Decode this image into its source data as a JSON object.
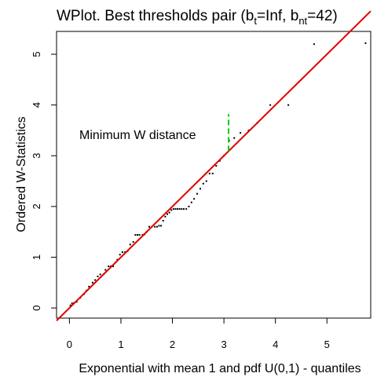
{
  "chart_data": {
    "type": "scatter",
    "title": {
      "main": "WPlot. Best thresholds pair (b",
      "sub1": "t",
      "mid": "=Inf, b",
      "sub2": "nt",
      "end": "=42)"
    },
    "xlabel": "Exponential with mean 1 and pdf U(0,1) - quantiles",
    "ylabel": "Ordered W-Statistics",
    "xlim": [
      -0.25,
      5.85
    ],
    "ylim": [
      -0.2,
      5.45
    ],
    "xticks": [
      "0",
      "1",
      "2",
      "3",
      "4",
      "5"
    ],
    "yticks": [
      "0",
      "1",
      "2",
      "3",
      "4",
      "5"
    ],
    "grid": false,
    "annotation": "Minimum W distance",
    "reference_line": {
      "intercept": 0,
      "slope": 1,
      "color": "#e00000"
    },
    "min_distance_segment": {
      "x": 3.09,
      "y_from": 3.09,
      "y_to": 3.82,
      "color": "#00cc00"
    },
    "point_color": "#000000",
    "points": {
      "x": [
        0.02,
        0.05,
        0.09,
        0.14,
        0.21,
        0.28,
        0.33,
        0.38,
        0.45,
        0.5,
        0.55,
        0.6,
        0.66,
        0.7,
        0.76,
        0.8,
        0.85,
        0.9,
        0.93,
        0.98,
        1.03,
        1.08,
        1.13,
        1.18,
        1.24,
        1.28,
        1.32,
        1.36,
        1.42,
        1.46,
        1.5,
        1.55,
        1.6,
        1.66,
        1.7,
        1.74,
        1.78,
        1.82,
        1.86,
        1.9,
        1.94,
        1.98,
        2.02,
        2.06,
        2.1,
        2.14,
        2.18,
        2.22,
        2.27,
        2.32,
        2.37,
        2.42,
        2.48,
        2.54,
        2.6,
        2.66,
        2.72,
        2.78,
        2.85,
        2.92,
        3.0,
        3.1,
        3.2,
        3.32,
        3.48,
        3.65,
        3.9,
        4.25,
        4.75,
        5.75
      ],
      "y": [
        0.05,
        0.09,
        0.1,
        0.12,
        0.2,
        0.27,
        0.34,
        0.42,
        0.5,
        0.55,
        0.62,
        0.66,
        0.66,
        0.75,
        0.82,
        0.82,
        0.82,
        0.9,
        0.95,
        1.05,
        1.1,
        1.1,
        1.12,
        1.25,
        1.3,
        1.44,
        1.44,
        1.44,
        1.44,
        1.45,
        1.5,
        1.6,
        1.6,
        1.6,
        1.6,
        1.62,
        1.62,
        1.72,
        1.8,
        1.85,
        1.88,
        1.93,
        1.95,
        1.95,
        1.95,
        1.95,
        1.95,
        1.95,
        1.95,
        2.0,
        2.08,
        2.15,
        2.25,
        2.35,
        2.45,
        2.5,
        2.65,
        2.65,
        2.8,
        2.9,
        3.0,
        3.3,
        3.35,
        3.45,
        3.5,
        3.65,
        4.0,
        4.0,
        5.2,
        5.22
      ]
    }
  }
}
